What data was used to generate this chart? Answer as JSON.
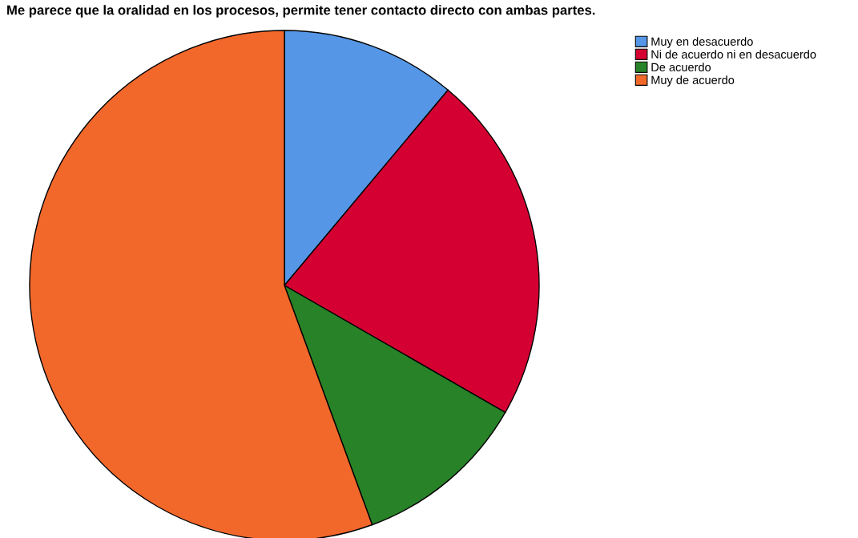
{
  "chart_data": {
    "type": "pie",
    "title": "Me parece que la oralidad en los procesos, permite tener contacto directo con ambas partes.",
    "categories": [
      "Muy en desacuerdo",
      "Ni de acuerdo ni en desacuerdo",
      "De acuerdo",
      "Muy de acuerdo"
    ],
    "values": [
      11.1,
      22.2,
      11.1,
      55.6
    ],
    "colors": [
      "#5597e6",
      "#d40032",
      "#288228",
      "#f2682b"
    ],
    "legend": "top right"
  }
}
